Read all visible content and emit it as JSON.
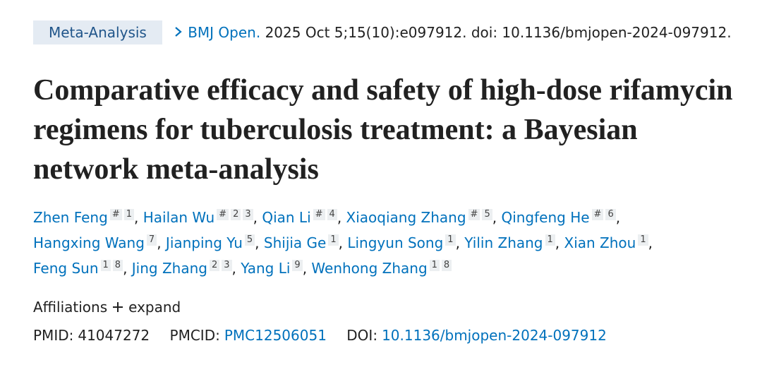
{
  "header": {
    "badge": "Meta-Analysis",
    "journal": "BMJ Open.",
    "citation": "2025 Oct 5;15(10):e097912. doi: 10.1136/bmjopen-2024-097912."
  },
  "title": "Comparative efficacy and safety of high-dose rifamycin regimens for tuberculosis treatment: a Bayesian network meta-analysis",
  "authors": [
    {
      "name": "Zhen Feng",
      "sups": [
        "#",
        "1"
      ],
      "sep": ","
    },
    {
      "name": "Hailan Wu",
      "sups": [
        "#",
        "2",
        "3"
      ],
      "sep": ","
    },
    {
      "name": "Qian Li",
      "sups": [
        "#",
        "4"
      ],
      "sep": ","
    },
    {
      "name": "Xiaoqiang Zhang",
      "sups": [
        "#",
        "5"
      ],
      "sep": ","
    },
    {
      "name": "Qingfeng He",
      "sups": [
        "#",
        "6"
      ],
      "sep": ","
    },
    {
      "name": "Hangxing Wang",
      "sups": [
        "7"
      ],
      "sep": ","
    },
    {
      "name": "Jianping Yu",
      "sups": [
        "5"
      ],
      "sep": ","
    },
    {
      "name": "Shijia Ge",
      "sups": [
        "1"
      ],
      "sep": ","
    },
    {
      "name": "Lingyun Song",
      "sups": [
        "1"
      ],
      "sep": ","
    },
    {
      "name": "Yilin Zhang",
      "sups": [
        "1"
      ],
      "sep": ","
    },
    {
      "name": "Xian Zhou",
      "sups": [
        "1"
      ],
      "sep": ","
    },
    {
      "name": "Feng Sun",
      "sups": [
        "1",
        "8"
      ],
      "sep": ","
    },
    {
      "name": "Jing Zhang",
      "sups": [
        "2",
        "3"
      ],
      "sep": ","
    },
    {
      "name": "Yang Li",
      "sups": [
        "9"
      ],
      "sep": ","
    },
    {
      "name": "Wenhong Zhang",
      "sups": [
        "1",
        "8"
      ]
    }
  ],
  "affiliations": {
    "label": "Affiliations",
    "action": "expand"
  },
  "ids": {
    "pmid_label": "PMID:",
    "pmid": "41047272",
    "pmcid_label": "PMCID:",
    "pmcid": "PMC12506051",
    "doi_label": "DOI:",
    "doi": "10.1136/bmjopen-2024-097912"
  }
}
